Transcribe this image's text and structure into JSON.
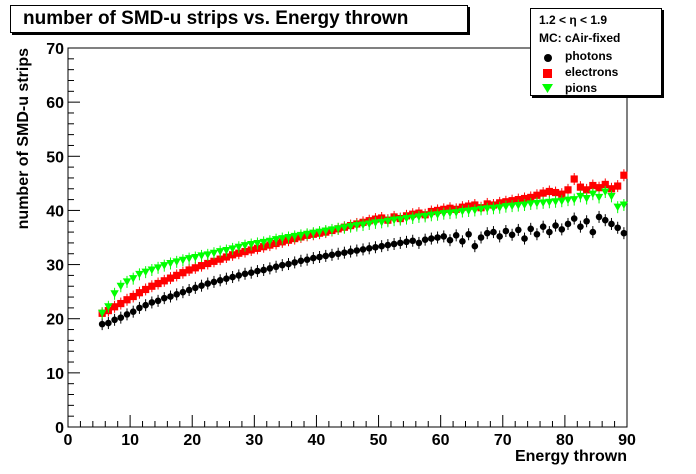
{
  "chart_data": {
    "type": "scatter",
    "title": "number of SMD-u strips vs. Energy thrown",
    "xlabel": "Energy thrown",
    "ylabel": "number of SMD-u strips",
    "xlim": [
      0,
      90
    ],
    "ylim": [
      0,
      70
    ],
    "x_ticks": [
      "0",
      "10",
      "20",
      "30",
      "40",
      "50",
      "60",
      "70",
      "80",
      "90"
    ],
    "y_ticks": [
      "0",
      "10",
      "20",
      "30",
      "40",
      "50",
      "60",
      "70"
    ],
    "legend": {
      "header": "1.2 < η < 1.9",
      "subheader": "MC: cAir-fixed",
      "placement": "top-right"
    },
    "series": [
      {
        "name": "photons",
        "marker": "circle",
        "color": "#000000",
        "points": [
          [
            5.5,
            19.0
          ],
          [
            6.5,
            19.2
          ],
          [
            7.5,
            19.8
          ],
          [
            8.5,
            20.2
          ],
          [
            9.5,
            20.8
          ],
          [
            10.5,
            21.3
          ],
          [
            11.5,
            22.0
          ],
          [
            12.5,
            22.5
          ],
          [
            13.5,
            23.0
          ],
          [
            14.5,
            23.3
          ],
          [
            15.5,
            23.8
          ],
          [
            16.5,
            24.1
          ],
          [
            17.5,
            24.5
          ],
          [
            18.5,
            24.9
          ],
          [
            19.5,
            25.3
          ],
          [
            20.5,
            25.7
          ],
          [
            21.5,
            26.1
          ],
          [
            22.5,
            26.5
          ],
          [
            23.5,
            26.8
          ],
          [
            24.5,
            27.1
          ],
          [
            25.5,
            27.4
          ],
          [
            26.5,
            27.7
          ],
          [
            27.5,
            28.0
          ],
          [
            28.5,
            28.3
          ],
          [
            29.5,
            28.5
          ],
          [
            30.5,
            28.8
          ],
          [
            31.5,
            29.0
          ],
          [
            32.5,
            29.3
          ],
          [
            33.5,
            29.6
          ],
          [
            34.5,
            29.9
          ],
          [
            35.5,
            30.1
          ],
          [
            36.5,
            30.4
          ],
          [
            37.5,
            30.7
          ],
          [
            38.5,
            30.9
          ],
          [
            39.5,
            31.2
          ],
          [
            40.5,
            31.4
          ],
          [
            41.5,
            31.6
          ],
          [
            42.5,
            31.8
          ],
          [
            43.5,
            32.0
          ],
          [
            44.5,
            32.2
          ],
          [
            45.5,
            32.4
          ],
          [
            46.5,
            32.6
          ],
          [
            47.5,
            32.8
          ],
          [
            48.5,
            33.0
          ],
          [
            49.5,
            33.2
          ],
          [
            50.5,
            33.4
          ],
          [
            51.5,
            33.6
          ],
          [
            52.5,
            33.8
          ],
          [
            53.5,
            34.0
          ],
          [
            54.5,
            34.2
          ],
          [
            55.5,
            34.4
          ],
          [
            56.5,
            34.0
          ],
          [
            57.5,
            34.6
          ],
          [
            58.5,
            34.8
          ],
          [
            59.5,
            35.0
          ],
          [
            60.5,
            35.2
          ],
          [
            61.5,
            34.5
          ],
          [
            62.5,
            35.4
          ],
          [
            63.5,
            34.3
          ],
          [
            64.5,
            35.6
          ],
          [
            65.5,
            33.4
          ],
          [
            66.5,
            35.0
          ],
          [
            67.5,
            35.8
          ],
          [
            68.5,
            36.0
          ],
          [
            69.5,
            35.2
          ],
          [
            70.5,
            36.2
          ],
          [
            71.5,
            35.5
          ],
          [
            72.5,
            36.4
          ],
          [
            73.5,
            34.8
          ],
          [
            74.5,
            36.6
          ],
          [
            75.5,
            35.6
          ],
          [
            76.5,
            37.0
          ],
          [
            77.5,
            36.0
          ],
          [
            78.5,
            37.2
          ],
          [
            79.5,
            36.5
          ],
          [
            80.5,
            37.5
          ],
          [
            81.5,
            38.5
          ],
          [
            82.5,
            37.0
          ],
          [
            83.5,
            38.0
          ],
          [
            84.5,
            36.0
          ],
          [
            85.5,
            38.8
          ],
          [
            86.5,
            38.2
          ],
          [
            87.5,
            37.5
          ],
          [
            88.5,
            36.8
          ],
          [
            89.5,
            35.8
          ]
        ]
      },
      {
        "name": "electrons",
        "marker": "square",
        "color": "#ff0000",
        "points": [
          [
            5.5,
            21.0
          ],
          [
            6.5,
            21.5
          ],
          [
            7.5,
            22.2
          ],
          [
            8.5,
            22.8
          ],
          [
            9.5,
            23.5
          ],
          [
            10.5,
            24.1
          ],
          [
            11.5,
            24.8
          ],
          [
            12.5,
            25.4
          ],
          [
            13.5,
            26.0
          ],
          [
            14.5,
            26.5
          ],
          [
            15.5,
            27.0
          ],
          [
            16.5,
            27.5
          ],
          [
            17.5,
            28.0
          ],
          [
            18.5,
            28.5
          ],
          [
            19.5,
            29.0
          ],
          [
            20.5,
            29.4
          ],
          [
            21.5,
            29.8
          ],
          [
            22.5,
            30.2
          ],
          [
            23.5,
            30.6
          ],
          [
            24.5,
            31.0
          ],
          [
            25.5,
            31.4
          ],
          [
            26.5,
            31.8
          ],
          [
            27.5,
            32.1
          ],
          [
            28.5,
            32.4
          ],
          [
            29.5,
            32.7
          ],
          [
            30.5,
            33.0
          ],
          [
            31.5,
            33.3
          ],
          [
            32.5,
            33.6
          ],
          [
            33.5,
            33.9
          ],
          [
            34.5,
            34.2
          ],
          [
            35.5,
            34.5
          ],
          [
            36.5,
            34.8
          ],
          [
            37.5,
            35.1
          ],
          [
            38.5,
            35.4
          ],
          [
            39.5,
            35.6
          ],
          [
            40.5,
            35.8
          ],
          [
            41.5,
            36.0
          ],
          [
            42.5,
            36.3
          ],
          [
            43.5,
            36.6
          ],
          [
            44.5,
            36.9
          ],
          [
            45.5,
            37.2
          ],
          [
            46.5,
            37.5
          ],
          [
            47.5,
            37.8
          ],
          [
            48.5,
            38.1
          ],
          [
            49.5,
            38.4
          ],
          [
            50.5,
            38.6
          ],
          [
            51.5,
            38.2
          ],
          [
            52.5,
            38.8
          ],
          [
            53.5,
            38.5
          ],
          [
            54.5,
            39.0
          ],
          [
            55.5,
            39.3
          ],
          [
            56.5,
            39.5
          ],
          [
            57.5,
            39.2
          ],
          [
            58.5,
            39.8
          ],
          [
            59.5,
            40.0
          ],
          [
            60.5,
            40.2
          ],
          [
            61.5,
            40.4
          ],
          [
            62.5,
            40.2
          ],
          [
            63.5,
            40.6
          ],
          [
            64.5,
            40.8
          ],
          [
            65.5,
            41.0
          ],
          [
            66.5,
            40.5
          ],
          [
            67.5,
            41.2
          ],
          [
            68.5,
            41.0
          ],
          [
            69.5,
            41.4
          ],
          [
            70.5,
            41.6
          ],
          [
            71.5,
            41.8
          ],
          [
            72.5,
            42.0
          ],
          [
            73.5,
            42.2
          ],
          [
            74.5,
            42.4
          ],
          [
            75.5,
            42.8
          ],
          [
            76.5,
            43.2
          ],
          [
            77.5,
            43.5
          ],
          [
            78.5,
            43.3
          ],
          [
            79.5,
            43.0
          ],
          [
            80.5,
            43.8
          ],
          [
            81.5,
            45.8
          ],
          [
            82.5,
            44.3
          ],
          [
            83.5,
            43.8
          ],
          [
            84.5,
            44.6
          ],
          [
            85.5,
            44.2
          ],
          [
            86.5,
            44.8
          ],
          [
            87.5,
            44.0
          ],
          [
            88.5,
            44.5
          ],
          [
            89.5,
            46.5
          ]
        ]
      },
      {
        "name": "pions",
        "marker": "triangle-down",
        "color": "#00ff00",
        "points": [
          [
            5.5,
            21.0
          ],
          [
            6.5,
            22.2
          ],
          [
            7.5,
            24.6
          ],
          [
            8.5,
            26.0
          ],
          [
            9.5,
            26.8
          ],
          [
            10.5,
            27.4
          ],
          [
            11.5,
            28.2
          ],
          [
            12.5,
            28.6
          ],
          [
            13.5,
            29.0
          ],
          [
            14.5,
            29.4
          ],
          [
            15.5,
            29.8
          ],
          [
            16.5,
            30.2
          ],
          [
            17.5,
            30.5
          ],
          [
            18.5,
            30.8
          ],
          [
            19.5,
            31.1
          ],
          [
            20.5,
            31.3
          ],
          [
            21.5,
            31.6
          ],
          [
            22.5,
            31.8
          ],
          [
            23.5,
            32.1
          ],
          [
            24.5,
            32.4
          ],
          [
            25.5,
            32.6
          ],
          [
            26.5,
            32.9
          ],
          [
            27.5,
            33.2
          ],
          [
            28.5,
            33.5
          ],
          [
            29.5,
            33.7
          ],
          [
            30.5,
            33.9
          ],
          [
            31.5,
            34.1
          ],
          [
            32.5,
            34.3
          ],
          [
            33.5,
            34.6
          ],
          [
            34.5,
            34.8
          ],
          [
            35.5,
            35.0
          ],
          [
            36.5,
            35.2
          ],
          [
            37.5,
            35.4
          ],
          [
            38.5,
            35.6
          ],
          [
            39.5,
            35.8
          ],
          [
            40.5,
            36.0
          ],
          [
            41.5,
            36.2
          ],
          [
            42.5,
            36.4
          ],
          [
            43.5,
            36.6
          ],
          [
            44.5,
            36.8
          ],
          [
            45.5,
            37.0
          ],
          [
            46.5,
            37.2
          ],
          [
            47.5,
            37.3
          ],
          [
            48.5,
            37.5
          ],
          [
            49.5,
            37.7
          ],
          [
            50.5,
            37.8
          ],
          [
            51.5,
            38.0
          ],
          [
            52.5,
            38.2
          ],
          [
            53.5,
            38.3
          ],
          [
            54.5,
            38.5
          ],
          [
            55.5,
            38.6
          ],
          [
            56.5,
            38.8
          ],
          [
            57.5,
            38.9
          ],
          [
            58.5,
            39.1
          ],
          [
            59.5,
            39.2
          ],
          [
            60.5,
            39.4
          ],
          [
            61.5,
            39.5
          ],
          [
            62.5,
            39.6
          ],
          [
            63.5,
            39.8
          ],
          [
            64.5,
            39.9
          ],
          [
            65.5,
            40.0
          ],
          [
            66.5,
            40.2
          ],
          [
            67.5,
            40.3
          ],
          [
            68.5,
            40.4
          ],
          [
            69.5,
            40.5
          ],
          [
            70.5,
            40.7
          ],
          [
            71.5,
            40.8
          ],
          [
            72.5,
            40.9
          ],
          [
            73.5,
            41.0
          ],
          [
            74.5,
            41.2
          ],
          [
            75.5,
            41.3
          ],
          [
            76.5,
            41.4
          ],
          [
            77.5,
            41.5
          ],
          [
            78.5,
            41.6
          ],
          [
            79.5,
            41.7
          ],
          [
            80.5,
            41.9
          ],
          [
            81.5,
            42.0
          ],
          [
            82.5,
            42.6
          ],
          [
            83.5,
            42.2
          ],
          [
            84.5,
            43.0
          ],
          [
            85.5,
            42.4
          ],
          [
            86.5,
            43.4
          ],
          [
            87.5,
            42.6
          ],
          [
            88.5,
            40.6
          ],
          [
            89.5,
            41.0
          ]
        ]
      }
    ]
  }
}
